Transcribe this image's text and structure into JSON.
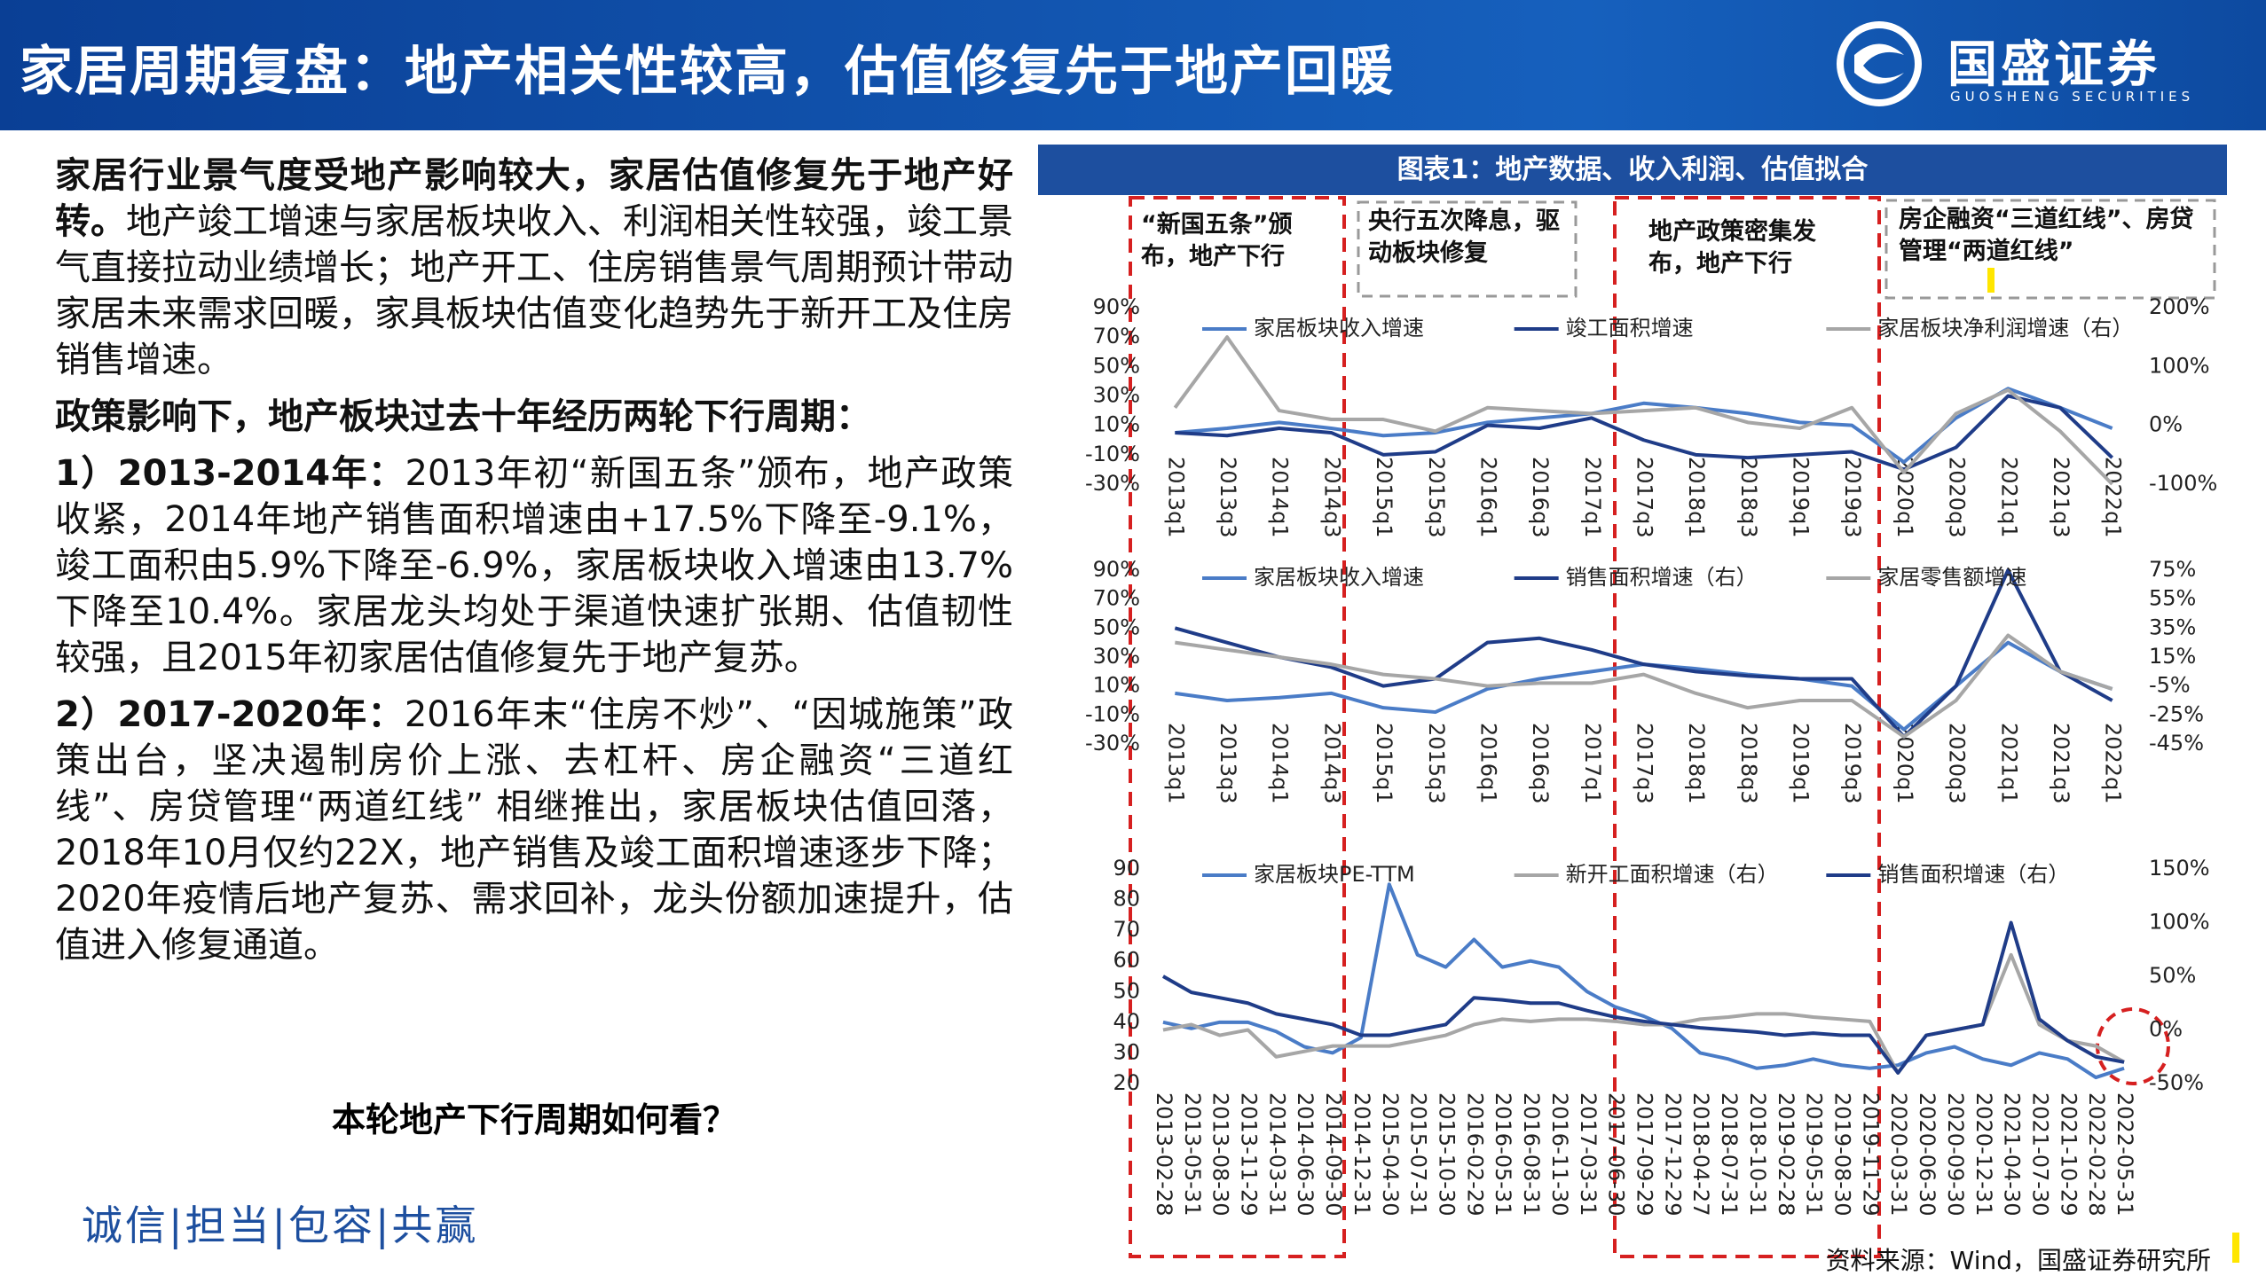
{
  "header": {
    "title": "家居周期复盘：地产相关性较高，估值修复先于地产回暖",
    "logo_text": "国盛证券",
    "logo_subtext": "GUOSHENG SECURITIES"
  },
  "body": {
    "paragraphs": [
      {
        "lead": "家居行业景气度受地产影响较大，家居估值修复先于地产好转。",
        "text": "地产竣工增速与家居板块收入、利润相关性较强，竣工景气直接拉动业绩增长；地产开工、住房销售景气周期预计带动家居未来需求回暖，家具板块估值变化趋势先于新开工及住房销售增速。"
      },
      {
        "lead": "政策影响下，地产板块过去十年经历两轮下行周期："
      },
      {
        "lead": "1）2013-2014年：",
        "text": "2013年初“新国五条”颁布，地产政策收紧，2014年地产销售面积增速由+17.5%下降至-9.1%，竣工面积由5.9%下降至-6.9%，家居板块收入增速由13.7%下降至10.4%。家居龙头均处于渠道快速扩张期、估值韧性较强，且2015年初家居估值修复先于地产复苏。"
      },
      {
        "lead": "2）2017-2020年：",
        "text": "2016年末“住房不炒”、“因城施策”政策出台，坚决遏制房价上涨、去杠杆、房企融资“三道红线”、房贷管理“两道红线” 相继推出，家居板块估值回落，2018年10月仅约22X，地产销售及竣工面积增速逐步下降；2020年疫情后地产复苏、需求回补，龙头份额加速提升，估值进入修复通道。"
      }
    ],
    "question": "本轮地产下行周期如何看？"
  },
  "figure": {
    "title": "图表1：地产数据、收入利润、估值拟合",
    "annotations": [
      "“新国五条”颁布，地产下行",
      "央行五次降息，驱动板块修复",
      "地产政策密集发布，地产下行",
      "房企融资“三道红线”、房贷管理“两道红线”"
    ],
    "source": "资料来源：Wind，国盛证券研究所"
  },
  "footer": {
    "slogan": "诚信|担当|包容|共赢"
  },
  "chart_data": [
    {
      "type": "line",
      "categories": [
        "2013q1",
        "2013q3",
        "2014q1",
        "2014q3",
        "2015q1",
        "2015q3",
        "2016q1",
        "2016q3",
        "2017q1",
        "2017q3",
        "2018q1",
        "2018q3",
        "2019q1",
        "2019q3",
        "2020q1",
        "2020q3",
        "2021q1",
        "2021q3",
        "2022q1"
      ],
      "ylim": [
        -30,
        90
      ],
      "yticks": [
        {
          "value": -30,
          "label": "-30%"
        },
        {
          "value": -10,
          "label": "-10%"
        },
        {
          "value": 10,
          "label": "10%"
        },
        {
          "value": 30,
          "label": "30%"
        },
        {
          "value": 50,
          "label": "50%"
        },
        {
          "value": 70,
          "label": "70%"
        },
        {
          "value": 90,
          "label": "90%"
        }
      ],
      "y2lim": [
        -100,
        200
      ],
      "y2ticks": [
        {
          "value": -100,
          "label": "-100%"
        },
        {
          "value": 0,
          "label": "0%"
        },
        {
          "value": 100,
          "label": "100%"
        },
        {
          "value": 200,
          "label": "200%"
        }
      ],
      "series": [
        {
          "name": "家居板块收入增速",
          "color": "#4a7cc7",
          "values": [
            5,
            8,
            12,
            8,
            3,
            5,
            12,
            15,
            18,
            25,
            22,
            18,
            12,
            10,
            -15,
            15,
            35,
            22,
            8
          ]
        },
        {
          "name": "竣工面积增速",
          "color": "#1f3c88",
          "values": [
            5,
            3,
            8,
            5,
            -10,
            -8,
            10,
            8,
            15,
            0,
            -10,
            -12,
            -10,
            -8,
            -20,
            -5,
            30,
            22,
            -12
          ]
        },
        {
          "name": "家居板块净利润增速（右）",
          "color": "#a6a6a6",
          "axis": "y2",
          "values": [
            30,
            150,
            25,
            10,
            10,
            -10,
            30,
            25,
            20,
            25,
            30,
            5,
            -5,
            30,
            -80,
            20,
            60,
            -10,
            -100
          ]
        }
      ]
    },
    {
      "type": "line",
      "categories": [
        "2013q1",
        "2013q3",
        "2014q1",
        "2014q3",
        "2015q1",
        "2015q3",
        "2016q1",
        "2016q3",
        "2017q1",
        "2017q3",
        "2018q1",
        "2018q3",
        "2019q1",
        "2019q3",
        "2020q1",
        "2020q3",
        "2021q1",
        "2021q3",
        "2022q1"
      ],
      "ylim": [
        -30,
        90
      ],
      "yticks": [
        {
          "value": -30,
          "label": "-30%"
        },
        {
          "value": -10,
          "label": "-10%"
        },
        {
          "value": 10,
          "label": "10%"
        },
        {
          "value": 30,
          "label": "30%"
        },
        {
          "value": 50,
          "label": "50%"
        },
        {
          "value": 70,
          "label": "70%"
        },
        {
          "value": 90,
          "label": "90%"
        }
      ],
      "y2lim": [
        -45,
        75
      ],
      "y2ticks": [
        {
          "value": -45,
          "label": "-45%"
        },
        {
          "value": -25,
          "label": "-25%"
        },
        {
          "value": -5,
          "label": "-5%"
        },
        {
          "value": 15,
          "label": "15%"
        },
        {
          "value": 35,
          "label": "35%"
        },
        {
          "value": 55,
          "label": "55%"
        },
        {
          "value": 75,
          "label": "75%"
        }
      ],
      "series": [
        {
          "name": "家居板块收入增速",
          "color": "#4a7cc7",
          "values": [
            5,
            0,
            2,
            5,
            -5,
            -8,
            8,
            15,
            20,
            25,
            22,
            18,
            15,
            10,
            -20,
            10,
            40,
            20,
            8
          ]
        },
        {
          "name": "销售面积增速（右）",
          "color": "#1f3c88",
          "axis": "y2",
          "values": [
            35,
            25,
            15,
            8,
            -5,
            0,
            25,
            28,
            20,
            10,
            5,
            2,
            0,
            0,
            -40,
            -5,
            75,
            5,
            -15
          ]
        },
        {
          "name": "家居零售额增速",
          "color": "#a6a6a6",
          "values": [
            40,
            35,
            30,
            25,
            18,
            15,
            10,
            12,
            12,
            18,
            5,
            -5,
            0,
            0,
            -25,
            0,
            45,
            20,
            8
          ]
        }
      ]
    },
    {
      "type": "line",
      "categories": [
        "2013-02-28",
        "2013-05-31",
        "2013-08-30",
        "2013-11-29",
        "2014-03-31",
        "2014-06-30",
        "2014-09-30",
        "2014-12-31",
        "2015-04-30",
        "2015-07-31",
        "2015-10-30",
        "2016-02-29",
        "2016-05-31",
        "2016-08-31",
        "2016-11-30",
        "2017-03-31",
        "2017-06-30",
        "2017-09-29",
        "2017-12-29",
        "2018-04-27",
        "2018-07-31",
        "2018-10-31",
        "2019-02-28",
        "2019-05-31",
        "2019-08-30",
        "2019-11-29",
        "2020-03-31",
        "2020-06-30",
        "2020-09-30",
        "2020-12-31",
        "2021-04-30",
        "2021-07-30",
        "2021-10-29",
        "2022-02-28",
        "2022-05-31"
      ],
      "ylim": [
        20,
        90
      ],
      "yticks": [
        20,
        30,
        40,
        50,
        60,
        70,
        80,
        90
      ],
      "y2lim": [
        -50,
        150
      ],
      "y2ticks": [
        {
          "value": -50,
          "label": "-50%"
        },
        {
          "value": 0,
          "label": "0%"
        },
        {
          "value": 50,
          "label": "50%"
        },
        {
          "value": 100,
          "label": "100%"
        },
        {
          "value": 150,
          "label": "150%"
        }
      ],
      "series": [
        {
          "name": "家居板块PE-TTM",
          "color": "#4a7cc7",
          "values": [
            40,
            38,
            40,
            40,
            37,
            32,
            30,
            35,
            85,
            62,
            58,
            67,
            58,
            60,
            58,
            50,
            45,
            42,
            38,
            30,
            28,
            25,
            26,
            28,
            26,
            25,
            26,
            30,
            32,
            28,
            26,
            30,
            28,
            22,
            25
          ]
        },
        {
          "name": "新开工面积增速（右）",
          "color": "#a6a6a6",
          "axis": "y2",
          "values": [
            0,
            5,
            -5,
            0,
            -25,
            -20,
            -15,
            -15,
            -15,
            -10,
            -5,
            5,
            10,
            8,
            10,
            10,
            8,
            5,
            5,
            10,
            12,
            15,
            15,
            12,
            10,
            8,
            -40,
            -5,
            0,
            5,
            70,
            5,
            -10,
            -15,
            -30
          ]
        },
        {
          "name": "销售面积增速（右）",
          "color": "#1f3c88",
          "axis": "y2",
          "values": [
            50,
            35,
            30,
            25,
            15,
            10,
            5,
            -5,
            -5,
            0,
            5,
            30,
            28,
            25,
            25,
            18,
            12,
            8,
            5,
            2,
            0,
            -2,
            -5,
            -3,
            -5,
            -5,
            -40,
            -5,
            0,
            5,
            100,
            10,
            -10,
            -25,
            -30
          ]
        }
      ]
    }
  ]
}
